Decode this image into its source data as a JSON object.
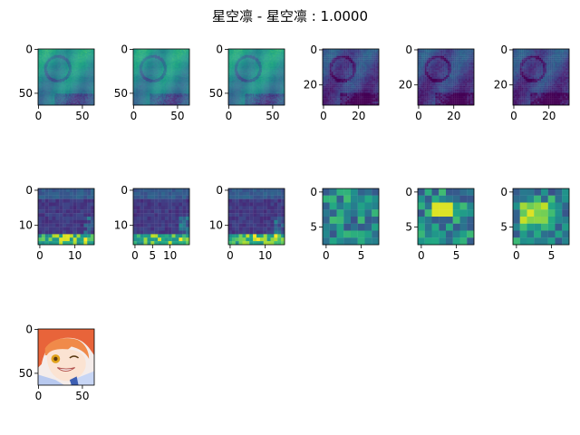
{
  "figure": {
    "title": "星空凛 - 星空凛 : 1.0000"
  },
  "chart_data": [
    {
      "type": "heatmap",
      "cmap": "viridis",
      "rows": 64,
      "cols": 64,
      "xticks": [
        0,
        50
      ],
      "yticks": [
        0,
        50
      ],
      "content": "feature map 64x64 (face)"
    },
    {
      "type": "heatmap",
      "cmap": "viridis",
      "rows": 64,
      "cols": 64,
      "xticks": [
        0,
        50
      ],
      "yticks": [
        0,
        50
      ],
      "content": "feature map 64x64 (face)"
    },
    {
      "type": "heatmap",
      "cmap": "viridis",
      "rows": 64,
      "cols": 64,
      "xticks": [
        0,
        50
      ],
      "yticks": [
        0,
        50
      ],
      "content": "feature map 64x64 (face)"
    },
    {
      "type": "heatmap",
      "cmap": "viridis",
      "rows": 32,
      "cols": 32,
      "xticks": [
        0,
        20
      ],
      "yticks": [
        0,
        20
      ],
      "content": "feature map 32x32 (face, darker)"
    },
    {
      "type": "heatmap",
      "cmap": "viridis",
      "rows": 32,
      "cols": 32,
      "xticks": [
        0,
        20
      ],
      "yticks": [
        0,
        20
      ],
      "content": "feature map 32x32 (face, darker)"
    },
    {
      "type": "heatmap",
      "cmap": "viridis",
      "rows": 32,
      "cols": 32,
      "xticks": [
        0,
        20
      ],
      "yticks": [
        0,
        20
      ],
      "content": "feature map 32x32 (face, darker)"
    },
    {
      "type": "heatmap",
      "cmap": "viridis",
      "rows": 16,
      "cols": 16,
      "xticks": [
        0,
        10
      ],
      "yticks": [
        0,
        10
      ],
      "content": "feature map 16x16"
    },
    {
      "type": "heatmap",
      "cmap": "viridis",
      "rows": 16,
      "cols": 16,
      "xticks": [
        0,
        5,
        10
      ],
      "yticks": [
        0,
        10
      ],
      "content": "feature map 16x16"
    },
    {
      "type": "heatmap",
      "cmap": "viridis",
      "rows": 16,
      "cols": 16,
      "xticks": [
        0,
        10
      ],
      "yticks": [
        0,
        10
      ],
      "content": "feature map 16x16"
    },
    {
      "type": "heatmap",
      "cmap": "viridis",
      "rows": 8,
      "cols": 8,
      "xticks": [
        0,
        5
      ],
      "yticks": [
        0,
        5
      ],
      "content": "feature map 8x8"
    },
    {
      "type": "heatmap",
      "cmap": "viridis",
      "rows": 8,
      "cols": 8,
      "xticks": [
        0,
        5
      ],
      "yticks": [
        0,
        5
      ],
      "content": "feature map 8x8"
    },
    {
      "type": "heatmap",
      "cmap": "viridis",
      "rows": 8,
      "cols": 8,
      "xticks": [
        0,
        5
      ],
      "yticks": [
        0,
        5
      ],
      "content": "feature map 8x8"
    },
    {
      "type": "image",
      "rows": 64,
      "cols": 64,
      "xticks": [
        0,
        50
      ],
      "yticks": [
        0,
        50
      ],
      "content": "original RGB anime portrait (orange hair, smiling, winking)"
    }
  ]
}
